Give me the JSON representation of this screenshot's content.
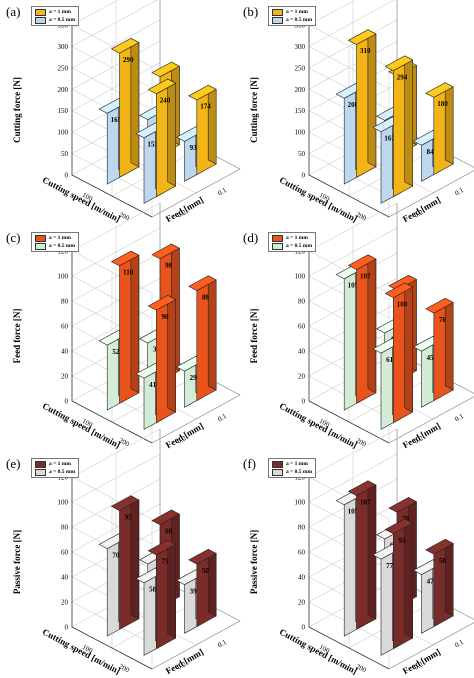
{
  "legend": {
    "entries": [
      "a = 1 mm",
      "a = 0.5 mm"
    ]
  },
  "chart_data": [
    {
      "panel": "(a)",
      "type": "bar3d",
      "ylabel": "Cutting force [N]",
      "xlabel": "Cutting speed [m/min]",
      "zlabel": "Feed [mm]",
      "zlim": [
        0,
        350
      ],
      "zticks": [
        0,
        50,
        100,
        150,
        200,
        250,
        300,
        350
      ],
      "speed_ticks": [
        "100",
        "200"
      ],
      "feed_ticks": [
        "0.2",
        "0.1"
      ],
      "colors": {
        "high": "#f2b417",
        "low": "#bdd7ee"
      },
      "series": [
        {
          "name": "a = 1 mm",
          "values": [
            290,
            183,
            240,
            174
          ]
        },
        {
          "name": "a = 0.5 mm",
          "values": [
            165,
            99,
            153,
            93
          ]
        }
      ]
    },
    {
      "panel": "(b)",
      "type": "bar3d",
      "ylabel": "Cutting force [N]",
      "xlabel": "Cutting speed [m/min]",
      "zlabel": "Feed [mm]",
      "zlim": [
        0,
        350
      ],
      "zticks": [
        0,
        50,
        100,
        150,
        200,
        250,
        300,
        350
      ],
      "speed_ticks": [
        "100",
        "200"
      ],
      "feed_ticks": [
        "0.2",
        "0.1"
      ],
      "colors": {
        "high": "#f2b417",
        "low": "#bdd7ee"
      },
      "series": [
        {
          "name": "a = 1 mm",
          "values": [
            310,
            185,
            294,
            180
          ]
        },
        {
          "name": "a = 0.5 mm",
          "values": [
            200,
            97,
            167,
            84
          ]
        }
      ]
    },
    {
      "panel": "(c)",
      "type": "bar3d",
      "ylabel": "Feed force [N]",
      "xlabel": "Cutting speed [m/min]",
      "zlabel": "Feed [mm]",
      "zlim": [
        0,
        120
      ],
      "zticks": [
        0,
        20,
        40,
        60,
        80,
        100,
        120
      ],
      "speed_ticks": [
        "100",
        "200"
      ],
      "feed_ticks": [
        "0.2",
        "0.1"
      ],
      "colors": {
        "high": "#e8541c",
        "low": "#d4ecd6"
      },
      "series": [
        {
          "name": "a = 1 mm",
          "values": [
            110,
            98,
            90,
            88
          ]
        },
        {
          "name": "a = 0.5 mm",
          "values": [
            52,
            36,
            41,
            29
          ]
        }
      ]
    },
    {
      "panel": "(d)",
      "type": "bar3d",
      "ylabel": "Feed force [N]",
      "xlabel": "Cutting speed [m/min]",
      "zlabel": "Feed [mm]",
      "zlim": [
        0,
        120
      ],
      "zticks": [
        0,
        20,
        40,
        60,
        80,
        100,
        120
      ],
      "speed_ticks": [
        "100",
        "200"
      ],
      "feed_ticks": [
        "0.2",
        "0.1"
      ],
      "colors": {
        "high": "#e8541c",
        "low": "#d4ecd6"
      },
      "series": [
        {
          "name": "a = 1 mm",
          "values": [
            107,
            73,
            100,
            70
          ]
        },
        {
          "name": "a = 0.5 mm",
          "values": [
            105,
            44,
            61,
            45
          ]
        }
      ]
    },
    {
      "panel": "(e)",
      "type": "bar3d",
      "ylabel": "Passive force [N]",
      "xlabel": "Cutting speed [m/min]",
      "zlabel": "Feed [mm]",
      "zlim": [
        0,
        120
      ],
      "zticks": [
        0,
        20,
        40,
        60,
        80,
        100,
        120
      ],
      "speed_ticks": [
        "100",
        "200"
      ],
      "feed_ticks": [
        "0.2",
        "0.1"
      ],
      "colors": {
        "high": "#7a2c2a",
        "low": "#d9d9d9"
      },
      "series": [
        {
          "name": "a = 1 mm",
          "values": [
            95,
            66,
            75,
            50
          ]
        },
        {
          "name": "a = 0.5 mm",
          "values": [
            70,
            40,
            58,
            39
          ]
        }
      ]
    },
    {
      "panel": "(f)",
      "type": "bar3d",
      "ylabel": "Passive force [N]",
      "xlabel": "Cutting speed [m/min]",
      "zlabel": "Feed [mm]",
      "zlim": [
        0,
        120
      ],
      "zticks": [
        0,
        20,
        40,
        60,
        80,
        100,
        120
      ],
      "speed_ticks": [
        "100",
        "200"
      ],
      "feed_ticks": [
        "0.2",
        "0.1"
      ],
      "colors": {
        "high": "#7a2c2a",
        "low": "#d9d9d9"
      },
      "series": [
        {
          "name": "a = 1 mm",
          "values": [
            107,
            76,
            92,
            58
          ]
        },
        {
          "name": "a = 0.5 mm",
          "values": [
            105,
            60,
            77,
            47
          ]
        }
      ]
    }
  ]
}
